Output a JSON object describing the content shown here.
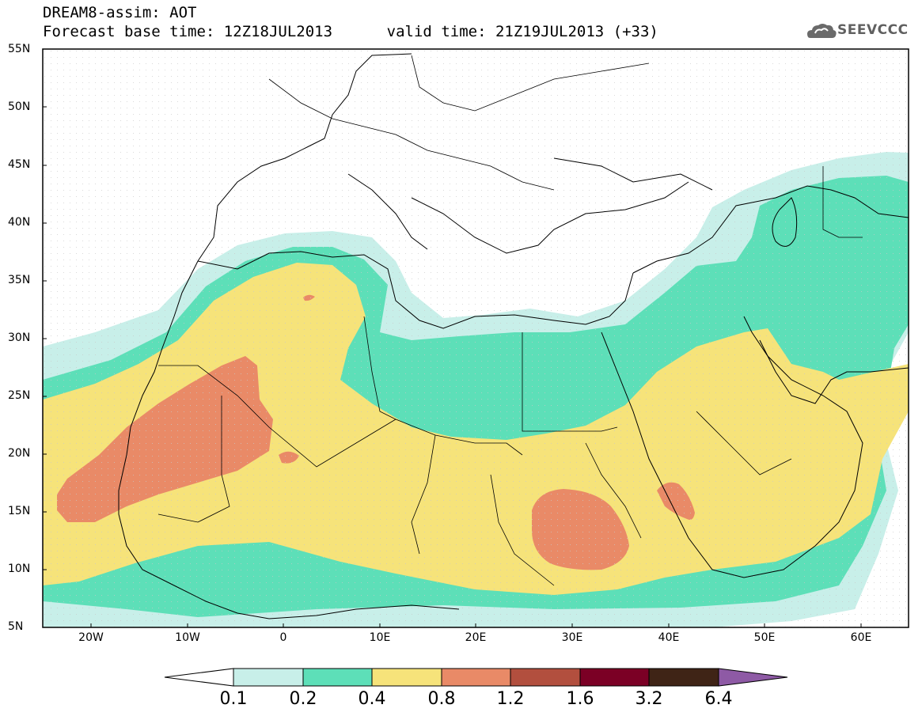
{
  "header": {
    "title_line1": "DREAM8-assim: AOT",
    "title_line2": "Forecast base time: 12Z18JUL2013      valid time: 21Z19JUL2013 (+33)",
    "logo_text": "SEEVCCC",
    "logo_icon": "cloud-icon"
  },
  "map": {
    "lat_labels": [
      "55N",
      "50N",
      "45N",
      "40N",
      "35N",
      "30N",
      "25N",
      "20N",
      "15N",
      "10N",
      "5N"
    ],
    "lon_labels": [
      "20W",
      "10W",
      "0",
      "10E",
      "20E",
      "30E",
      "40E",
      "50E",
      "60E"
    ],
    "colors": {
      "c01": "#c8efe9",
      "c02": "#5ddfb8",
      "c04": "#f6e37a",
      "c08": "#e98a67",
      "c12": "#b24f3e",
      "c16": "#7b0025",
      "c32": "#3f2416",
      "c64": "#8e5aa5"
    }
  },
  "colorbar": {
    "labels": [
      "0.1",
      "0.2",
      "0.4",
      "0.8",
      "1.2",
      "1.6",
      "3.2",
      "6.4"
    ]
  }
}
